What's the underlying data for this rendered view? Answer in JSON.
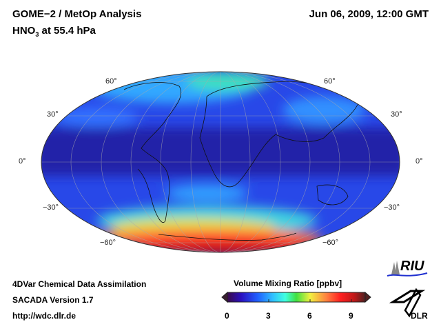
{
  "header": {
    "title": "GOME−2 / MetOp Analysis",
    "species_main": "HNO",
    "species_sub": "3",
    "species_rest": " at 55.4 hPa",
    "datetime": "Jun 06, 2009, 12:00 GMT"
  },
  "map": {
    "projection": "Mollweide",
    "lat_labels_left": [
      "60°",
      "30°",
      "0°",
      "−30°",
      "−60°"
    ],
    "lat_labels_right": [
      "60°",
      "30°",
      "0°",
      "−30°",
      "−60°"
    ]
  },
  "footer": {
    "line1": "4DVar Chemical Data Assimilation",
    "line2": "SACADA Version 1.7",
    "line3": "http://wdc.dlr.de"
  },
  "colorbar": {
    "title": "Volume Mixing Ratio [ppbv]",
    "min": 0,
    "max": 10,
    "ticks": [
      "0",
      "3",
      "6",
      "9"
    ],
    "colors": [
      "#3a0a4a",
      "#2a10c0",
      "#2060ff",
      "#30c0ff",
      "#40ffe0",
      "#40e040",
      "#f0f040",
      "#ff8040",
      "#ff2020",
      "#c01818",
      "#502020"
    ]
  },
  "logos": {
    "riu": "RIU",
    "dlr": "DLR"
  }
}
